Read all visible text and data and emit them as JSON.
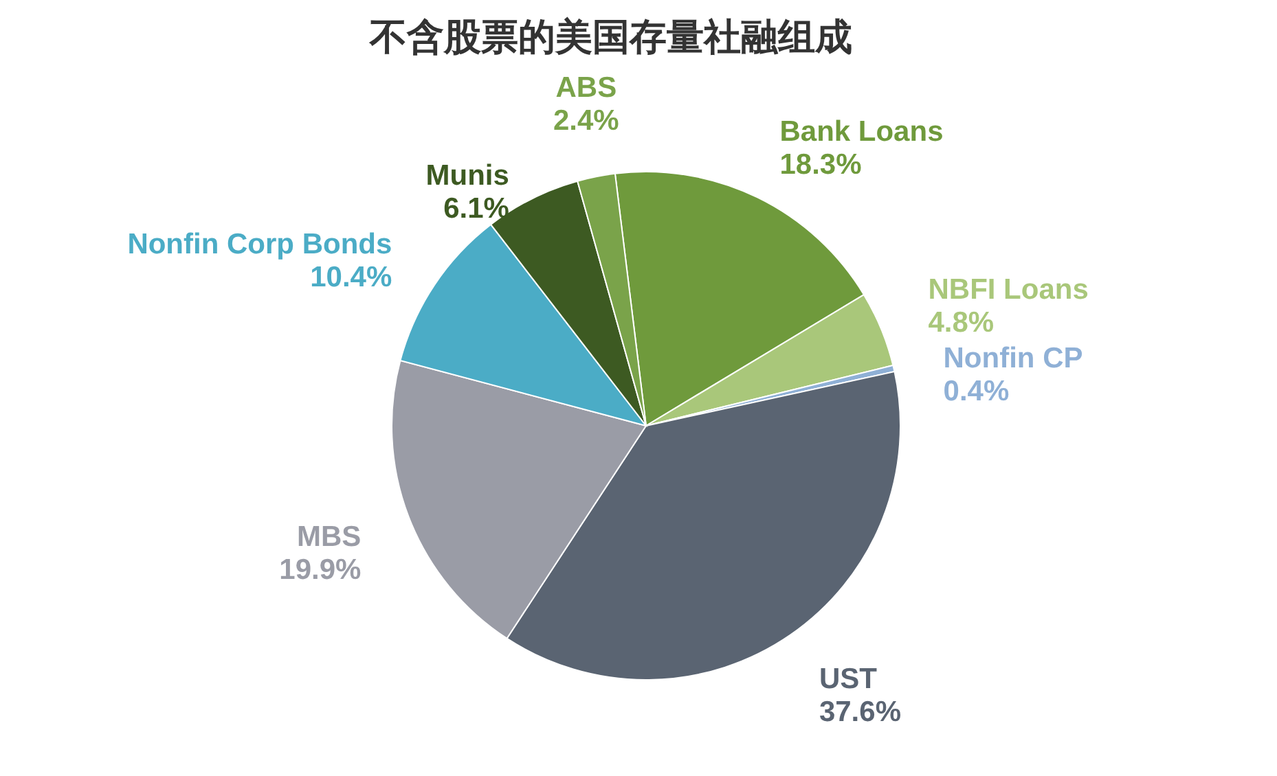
{
  "chart_data": {
    "type": "pie",
    "title": "不含股票的美国存量社融组成",
    "categories": [
      "Bank Loans",
      "NBFI Loans",
      "Nonfin CP",
      "UST",
      "MBS",
      "Nonfin Corp Bonds",
      "Munis",
      "ABS"
    ],
    "values": [
      18.3,
      4.8,
      0.4,
      37.6,
      19.9,
      10.4,
      6.1,
      2.4
    ],
    "value_labels": [
      "18.3%",
      "4.8%",
      "0.4%",
      "37.6%",
      "19.9%",
      "10.4%",
      "6.1%",
      "2.4%"
    ],
    "colors": [
      "#6f9a3c",
      "#a9c77a",
      "#8fb0d6",
      "#5a6472",
      "#9a9ca6",
      "#4bacc6",
      "#3d5a22",
      "#7aa34a"
    ]
  }
}
